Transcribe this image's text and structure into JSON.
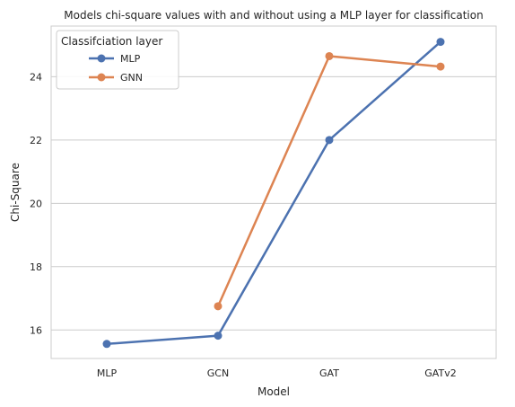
{
  "chart_data": {
    "type": "line",
    "title": "Models chi-square values with and without using a MLP layer for classification",
    "xlabel": "Model",
    "ylabel": "Chi-Square",
    "categories": [
      "MLP",
      "GCN",
      "GAT",
      "GATv2"
    ],
    "ylim": [
      15.1,
      25.6
    ],
    "yticks": [
      16,
      18,
      20,
      22,
      24
    ],
    "grid": true,
    "legend": {
      "title": "Classifciation layer",
      "placement": "top-left"
    },
    "series": [
      {
        "name": "MLP",
        "color": "#4c72b0",
        "values": [
          15.56,
          15.82,
          22.0,
          25.1
        ]
      },
      {
        "name": "GNN",
        "color": "#dd8452",
        "values": [
          null,
          16.75,
          24.65,
          24.32
        ]
      }
    ]
  }
}
